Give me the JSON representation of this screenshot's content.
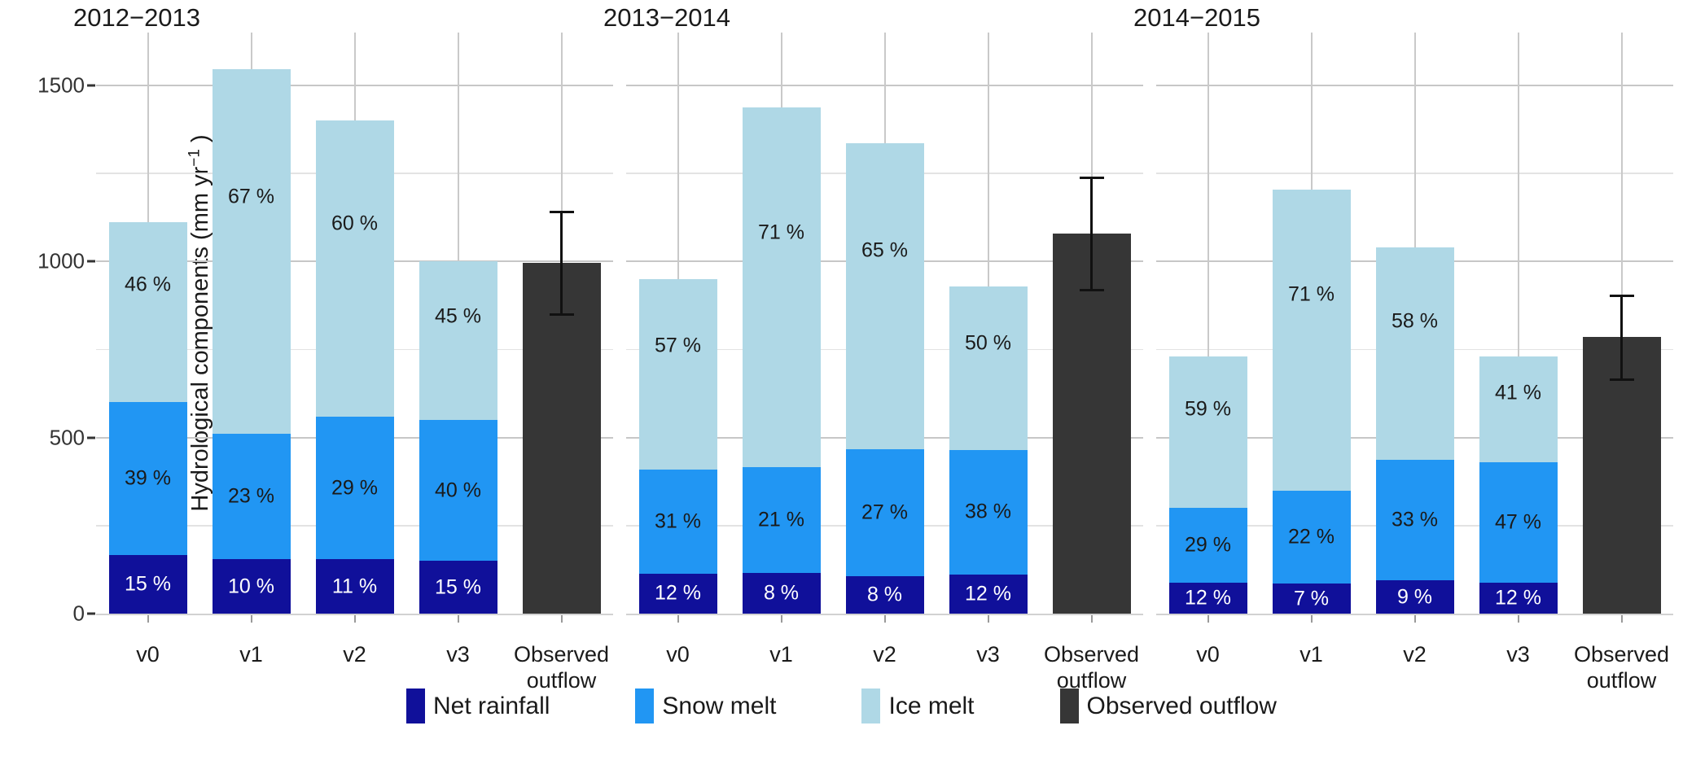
{
  "chart_data": {
    "type": "bar",
    "stacked": true,
    "title": "",
    "ylabel_prefix": "Hydrological components (mm yr",
    "ylabel_sup": "−1",
    "ylabel_suffix": " )",
    "ylim": [
      0,
      1650
    ],
    "yticks": [
      {
        "value": 0,
        "label": "0"
      },
      {
        "value": 500,
        "label": "500"
      },
      {
        "value": 1000,
        "label": "1000"
      },
      {
        "value": 1500,
        "label": "1500"
      }
    ],
    "yminor": [
      250,
      750,
      1250
    ],
    "grid": "on",
    "legend_position": "bottom",
    "categories": [
      "v0",
      "v1",
      "v2",
      "v3",
      "Observed outflow"
    ],
    "series_names": [
      "Net rainfall",
      "Snow melt",
      "Ice melt"
    ],
    "panels": [
      {
        "title": "2012−2013",
        "bars": [
          {
            "category": "v0",
            "total": 1112,
            "pcts": [
              15,
              39,
              46
            ],
            "labels": [
              "15 %",
              "39 %",
              "46 %"
            ]
          },
          {
            "category": "v1",
            "total": 1545,
            "pcts": [
              10,
              23,
              67
            ],
            "labels": [
              "10 %",
              "23 %",
              "67 %"
            ]
          },
          {
            "category": "v2",
            "total": 1400,
            "pcts": [
              11,
              29,
              60
            ],
            "labels": [
              "11 %",
              "29 %",
              "60 %"
            ]
          },
          {
            "category": "v3",
            "total": 1000,
            "pcts": [
              15,
              40,
              45
            ],
            "labels": [
              "15 %",
              "40 %",
              "45 %"
            ]
          }
        ],
        "observed": {
          "category_lines": [
            "Observed",
            "outflow"
          ],
          "value": 995,
          "err_low": 845,
          "err_high": 1145
        }
      },
      {
        "title": "2013−2014",
        "bars": [
          {
            "category": "v0",
            "total": 950,
            "pcts": [
              12,
              31,
              57
            ],
            "labels": [
              "12 %",
              "31 %",
              "57 %"
            ]
          },
          {
            "category": "v1",
            "total": 1438,
            "pcts": [
              8,
              21,
              71
            ],
            "labels": [
              "8 %",
              "21 %",
              "71 %"
            ]
          },
          {
            "category": "v2",
            "total": 1335,
            "pcts": [
              8,
              27,
              65
            ],
            "labels": [
              "8 %",
              "27 %",
              "65 %"
            ]
          },
          {
            "category": "v3",
            "total": 930,
            "pcts": [
              12,
              38,
              50
            ],
            "labels": [
              "12 %",
              "38 %",
              "50 %"
            ]
          }
        ],
        "observed": {
          "category_lines": [
            "Observed",
            "outflow"
          ],
          "value": 1080,
          "err_low": 915,
          "err_high": 1240
        }
      },
      {
        "title": "2014−2015",
        "bars": [
          {
            "category": "v0",
            "total": 730,
            "pcts": [
              12,
              29,
              59
            ],
            "labels": [
              "12 %",
              "29 %",
              "59 %"
            ]
          },
          {
            "category": "v1",
            "total": 1205,
            "pcts": [
              7,
              22,
              71
            ],
            "labels": [
              "7 %",
              "22 %",
              "71 %"
            ]
          },
          {
            "category": "v2",
            "total": 1040,
            "pcts": [
              9,
              33,
              58
            ],
            "labels": [
              "9 %",
              "33 %",
              "58 %"
            ]
          },
          {
            "category": "v3",
            "total": 730,
            "pcts": [
              12,
              47,
              41
            ],
            "labels": [
              "12 %",
              "47 %",
              "41 %"
            ]
          }
        ],
        "observed": {
          "category_lines": [
            "Observed",
            "outflow"
          ],
          "value": 785,
          "err_low": 660,
          "err_high": 905
        }
      }
    ],
    "colors": {
      "net_rainfall": "#10109A",
      "snow_melt": "#2196F3",
      "ice_melt": "#AFD8E6",
      "observed_outflow": "#363636",
      "grid_major": "#c7c7c7",
      "grid_minor": "#e3e3e3",
      "error_bar": "#111111"
    }
  },
  "legend": {
    "items": [
      {
        "label": "Net rainfall",
        "color_key": "net_rainfall"
      },
      {
        "label": "Snow melt",
        "color_key": "snow_melt"
      },
      {
        "label": "Ice melt",
        "color_key": "ice_melt"
      },
      {
        "label": "Observed outflow",
        "color_key": "observed_outflow"
      }
    ]
  }
}
